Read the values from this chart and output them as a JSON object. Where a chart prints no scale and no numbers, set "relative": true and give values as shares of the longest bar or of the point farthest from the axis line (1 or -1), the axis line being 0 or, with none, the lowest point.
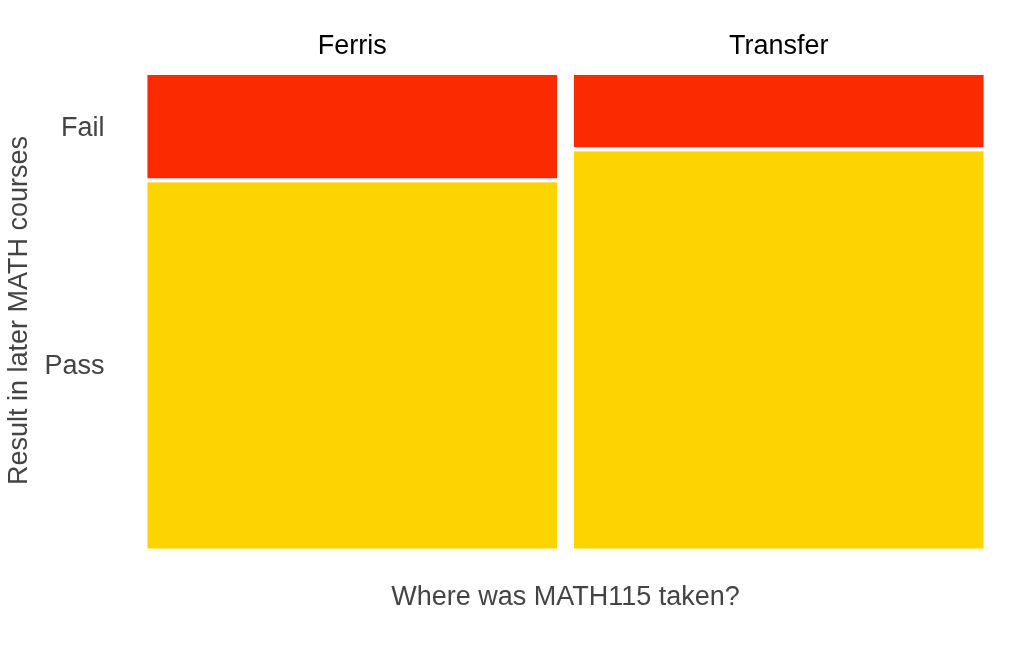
{
  "chart_data": {
    "type": "bar",
    "stacked": true,
    "relative": true,
    "xlabel": "Where was MATH115 taken?",
    "ylabel": "Result in later MATH courses",
    "categories": [
      "Ferris",
      "Transfer"
    ],
    "series": [
      {
        "name": "Pass",
        "color": "#fdd300",
        "values": [
          0.775,
          0.84
        ]
      },
      {
        "name": "Fail",
        "color": "#fc2a00",
        "values": [
          0.225,
          0.16
        ]
      }
    ]
  }
}
